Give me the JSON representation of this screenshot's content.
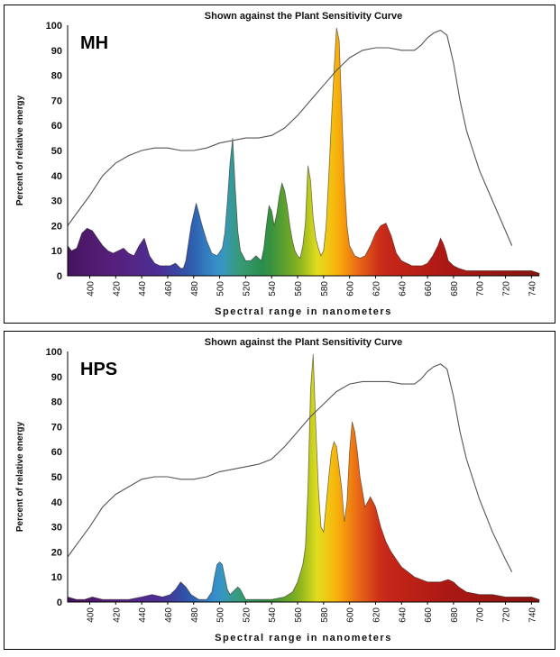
{
  "chart_data": [
    {
      "type": "area",
      "label": "MH",
      "title": "Shown against the Plant Sensitivity Curve",
      "xlabel": "Spectral range in nanometers",
      "ylabel": "Percent of relative energy",
      "xlim": [
        383,
        746
      ],
      "ylim": [
        0,
        100
      ],
      "x_ticks": [
        "400",
        "420",
        "440",
        "460",
        "480",
        "500",
        "520",
        "540",
        "560",
        "580",
        "600",
        "620",
        "640",
        "660",
        "680",
        "700",
        "720",
        "740"
      ],
      "y_ticks": [
        "0",
        "10",
        "20",
        "30",
        "40",
        "50",
        "60",
        "70",
        "80",
        "90",
        "100"
      ],
      "grid": false,
      "series": [
        {
          "kind": "spectrum",
          "x": [
            383,
            386,
            390,
            394,
            398,
            402,
            406,
            410,
            414,
            418,
            422,
            426,
            430,
            434,
            438,
            442,
            446,
            450,
            454,
            458,
            462,
            466,
            468,
            470,
            472,
            474,
            478,
            482,
            486,
            490,
            494,
            498,
            502,
            504,
            506,
            508,
            510,
            512,
            514,
            516,
            518,
            520,
            524,
            528,
            532,
            534,
            536,
            538,
            540,
            542,
            544,
            546,
            548,
            550,
            552,
            554,
            556,
            558,
            560,
            562,
            564,
            566,
            568,
            570,
            572,
            574,
            576,
            578,
            580,
            582,
            584,
            586,
            588,
            590,
            592,
            594,
            596,
            598,
            600,
            604,
            608,
            612,
            616,
            620,
            624,
            628,
            632,
            636,
            640,
            644,
            648,
            652,
            656,
            660,
            664,
            668,
            670,
            672,
            674,
            676,
            680,
            684,
            690,
            700,
            710,
            720,
            730,
            740,
            746
          ],
          "y": [
            12,
            10,
            11,
            17,
            19,
            18,
            15,
            12,
            10,
            9,
            10,
            11,
            9,
            8,
            12,
            15,
            8,
            5,
            4,
            4,
            4,
            5,
            4,
            3,
            3,
            6,
            20,
            29,
            21,
            14,
            9,
            8,
            11,
            17,
            30,
            45,
            55,
            35,
            18,
            10,
            8,
            6,
            6,
            8,
            6,
            11,
            20,
            28,
            26,
            20,
            25,
            32,
            37,
            34,
            28,
            20,
            14,
            10,
            8,
            7,
            12,
            21,
            44,
            38,
            23,
            15,
            11,
            8,
            10,
            20,
            40,
            62,
            82,
            99,
            94,
            66,
            38,
            20,
            12,
            8,
            7,
            8,
            12,
            17,
            20,
            21,
            16,
            9,
            6,
            5,
            4,
            4,
            4,
            5,
            8,
            12,
            15,
            13,
            10,
            6,
            4,
            3,
            2,
            2,
            2,
            2,
            2,
            2,
            1
          ]
        },
        {
          "kind": "plant_sensitivity",
          "x": [
            383,
            390,
            400,
            410,
            420,
            430,
            440,
            450,
            460,
            470,
            480,
            490,
            500,
            510,
            520,
            530,
            540,
            550,
            560,
            570,
            580,
            590,
            600,
            610,
            620,
            630,
            640,
            650,
            655,
            660,
            665,
            670,
            675,
            680,
            685,
            690,
            700,
            710,
            720,
            725
          ],
          "y": [
            20,
            25,
            32,
            40,
            45,
            48,
            50,
            51,
            51,
            50,
            50,
            51,
            53,
            54,
            55,
            55,
            56,
            59,
            64,
            70,
            76,
            82,
            87,
            90,
            91,
            91,
            90,
            90,
            92,
            95,
            97,
            98,
            96,
            85,
            70,
            58,
            42,
            30,
            18,
            12
          ]
        }
      ]
    },
    {
      "type": "area",
      "label": "HPS",
      "title": "Shown against the Plant Sensitivity Curve",
      "xlabel": "Spectral range in nanometers",
      "ylabel": "Percent of relative energy",
      "xlim": [
        383,
        746
      ],
      "ylim": [
        0,
        100
      ],
      "x_ticks": [
        "400",
        "420",
        "440",
        "460",
        "480",
        "500",
        "520",
        "540",
        "560",
        "580",
        "600",
        "620",
        "640",
        "660",
        "680",
        "700",
        "720",
        "740"
      ],
      "y_ticks": [
        "0",
        "10",
        "20",
        "30",
        "40",
        "50",
        "60",
        "70",
        "80",
        "90",
        "100"
      ],
      "grid": false,
      "series": [
        {
          "kind": "spectrum",
          "x": [
            383,
            390,
            396,
            402,
            410,
            420,
            430,
            440,
            448,
            456,
            462,
            466,
            470,
            474,
            478,
            484,
            490,
            494,
            496,
            498,
            500,
            502,
            504,
            506,
            508,
            512,
            514,
            516,
            518,
            520,
            524,
            530,
            540,
            550,
            556,
            560,
            564,
            566,
            568,
            570,
            572,
            574,
            576,
            578,
            580,
            584,
            586,
            588,
            590,
            594,
            596,
            598,
            600,
            602,
            604,
            606,
            608,
            612,
            614,
            616,
            618,
            620,
            624,
            628,
            632,
            636,
            640,
            650,
            660,
            670,
            676,
            680,
            684,
            690,
            700,
            710,
            720,
            730,
            740,
            746
          ],
          "y": [
            2,
            1,
            1,
            2,
            1,
            1,
            1,
            2,
            3,
            2,
            3,
            5,
            8,
            6,
            3,
            1,
            1,
            4,
            10,
            15,
            16,
            15,
            10,
            5,
            3,
            5,
            6,
            5,
            3,
            1,
            1,
            1,
            1,
            2,
            4,
            8,
            15,
            22,
            45,
            85,
            99,
            70,
            45,
            30,
            28,
            50,
            60,
            64,
            62,
            45,
            32,
            40,
            60,
            72,
            68,
            60,
            50,
            38,
            40,
            42,
            40,
            38,
            30,
            24,
            20,
            17,
            14,
            10,
            8,
            8,
            9,
            8,
            6,
            4,
            3,
            3,
            2,
            2,
            2,
            1
          ]
        },
        {
          "kind": "plant_sensitivity",
          "x": [
            383,
            390,
            400,
            410,
            420,
            430,
            440,
            450,
            460,
            470,
            480,
            490,
            500,
            510,
            520,
            530,
            540,
            550,
            560,
            570,
            580,
            590,
            600,
            610,
            620,
            630,
            640,
            650,
            655,
            660,
            665,
            670,
            675,
            680,
            685,
            690,
            700,
            710,
            720,
            725
          ],
          "y": [
            18,
            23,
            30,
            38,
            43,
            46,
            49,
            50,
            50,
            49,
            49,
            50,
            52,
            53,
            54,
            55,
            57,
            62,
            68,
            74,
            79,
            84,
            87,
            88,
            88,
            88,
            87,
            87,
            89,
            92,
            94,
            95,
            93,
            82,
            68,
            57,
            41,
            28,
            17,
            12
          ]
        }
      ]
    }
  ]
}
